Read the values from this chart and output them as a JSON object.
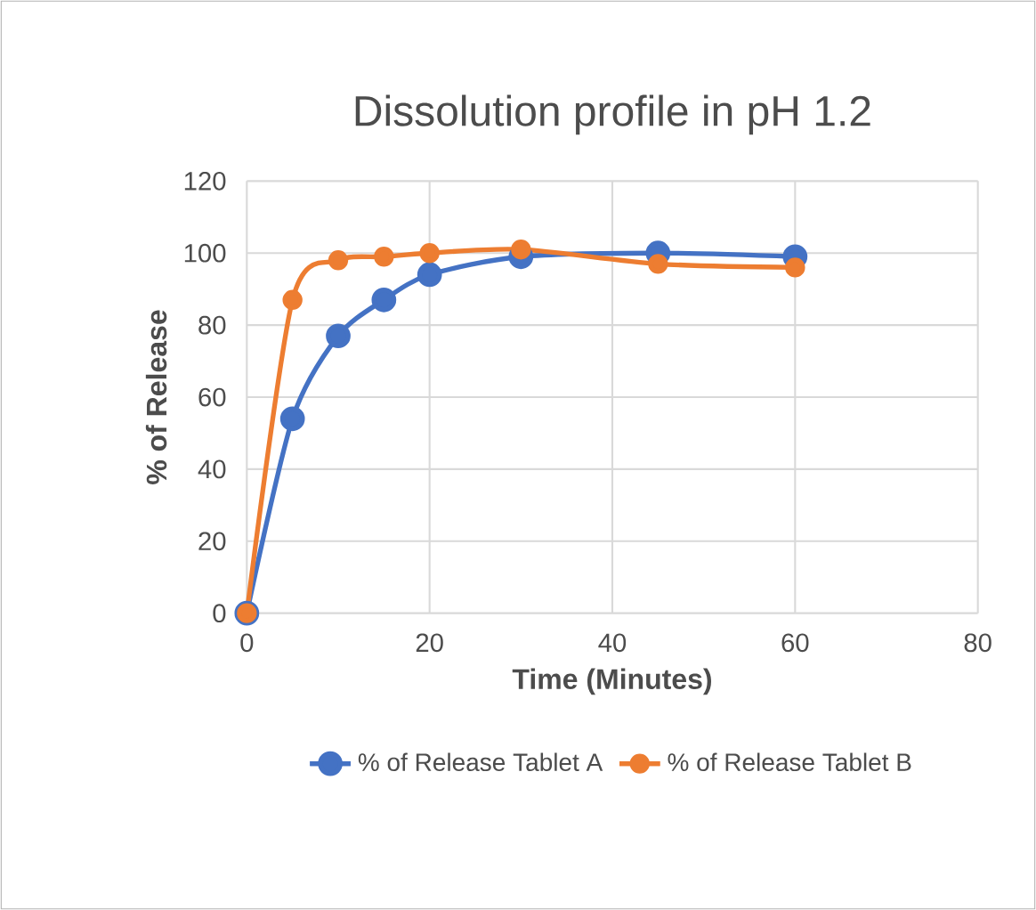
{
  "chart_data": {
    "type": "line",
    "title": "Dissolution profile in pH 1.2",
    "xlabel": "Time (Minutes)",
    "ylabel": "% of Release",
    "x": [
      0,
      5,
      10,
      15,
      20,
      30,
      45,
      60
    ],
    "series": [
      {
        "name": "% of Release Tablet A",
        "color": "#4472c4",
        "values": [
          0,
          54,
          77,
          87,
          94,
          99,
          100,
          99
        ]
      },
      {
        "name": "% of Release Tablet B",
        "color": "#ed7d31",
        "values": [
          0,
          87,
          98,
          99,
          100,
          101,
          97,
          96
        ]
      }
    ],
    "xlim": [
      0,
      80
    ],
    "xticks": [
      0,
      20,
      40,
      60,
      80
    ],
    "ylim": [
      0,
      120
    ],
    "yticks": [
      0,
      20,
      40,
      60,
      80,
      100,
      120
    ],
    "grid": true,
    "legend": "bottom",
    "marker": "circle",
    "line_style": "solid"
  }
}
